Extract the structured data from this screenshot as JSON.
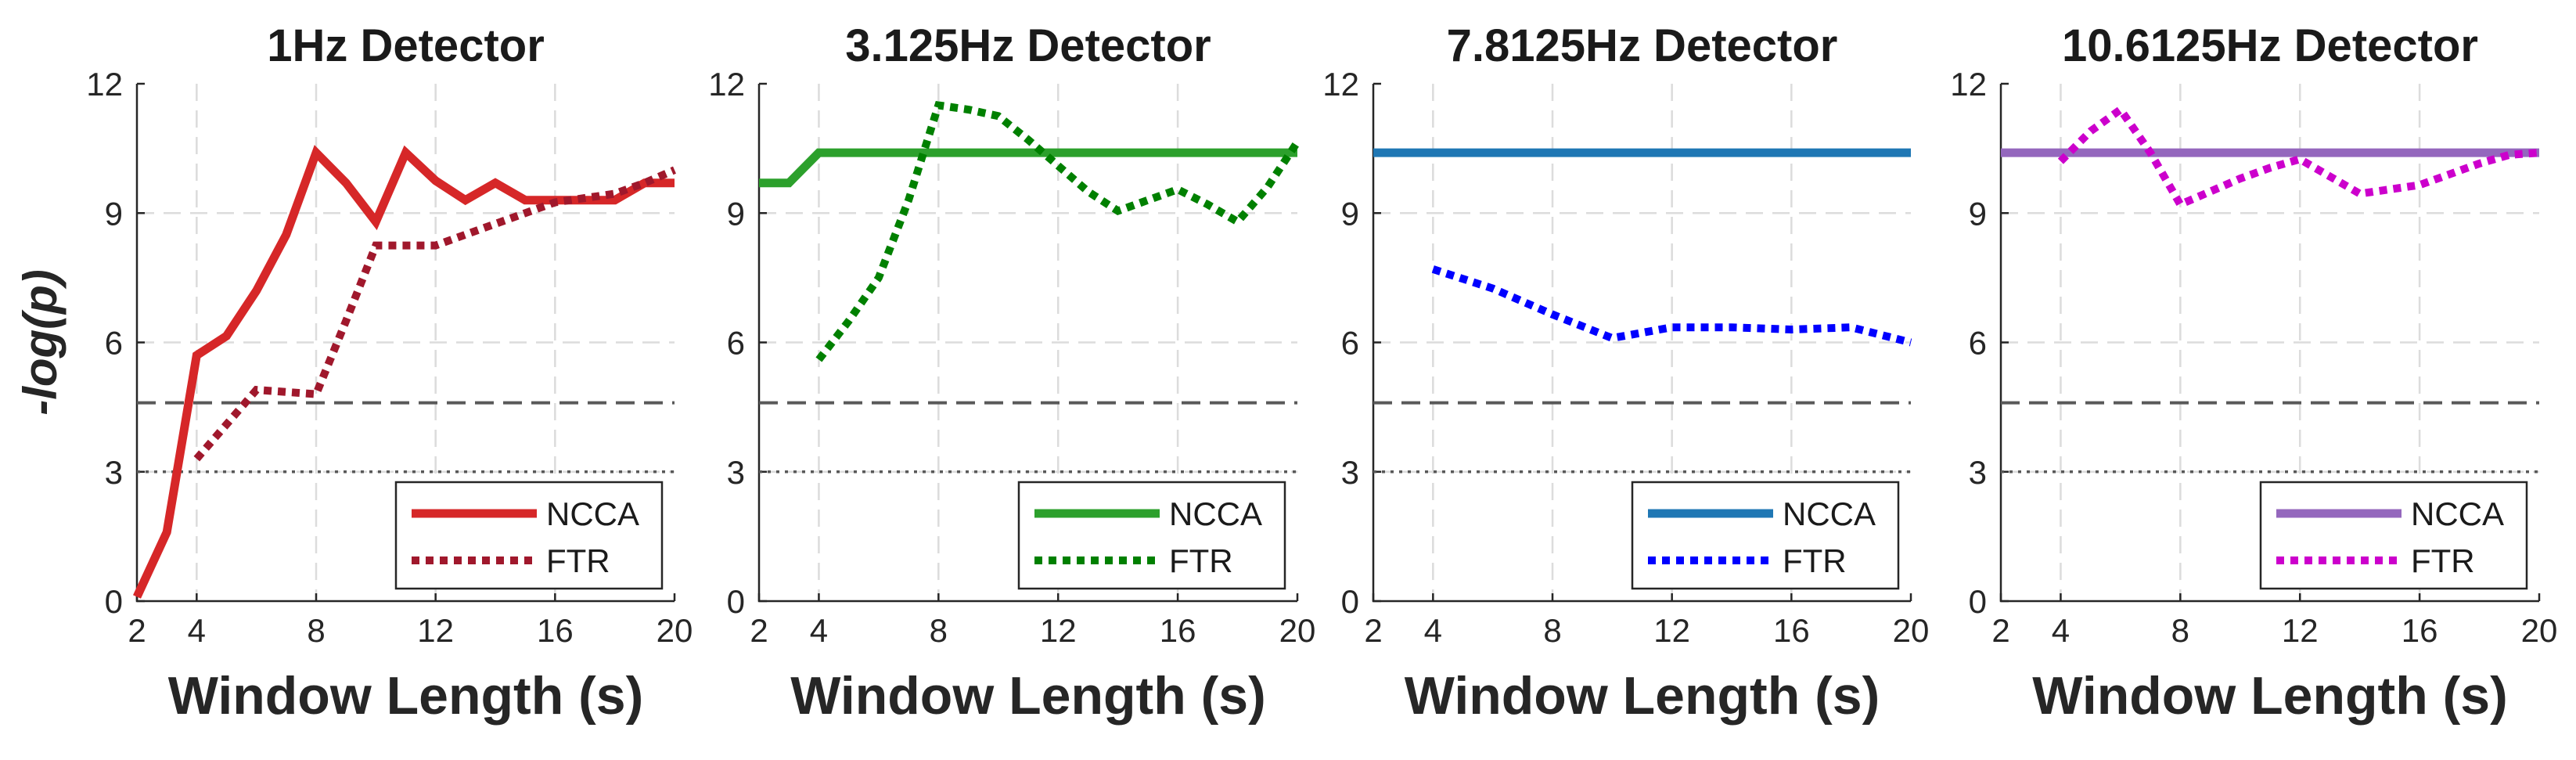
{
  "colors": {
    "ncca_1hz": "#d62728",
    "ftr_1hz": "#a0182c",
    "ncca_3hz": "#2ca02c",
    "ftr_3hz": "#008000",
    "ncca_7hz": "#1f77b4",
    "ftr_7hz": "#0000ff",
    "ncca_10hz": "#9467bd",
    "ftr_10hz": "#cc00cc",
    "threshold_dashed": "#595959",
    "threshold_dotted": "#595959"
  },
  "chart_data": [
    {
      "type": "line",
      "title": "1Hz Detector",
      "xlabel": "Window Length (s)",
      "ylabel": "-log(p)",
      "xlim": [
        2,
        20
      ],
      "ylim": [
        0,
        12
      ],
      "xticks": [
        "2",
        "4",
        "8",
        "12",
        "16",
        "20"
      ],
      "yticks": [
        "0",
        "3",
        "6",
        "9",
        "12"
      ],
      "grid": true,
      "legend": "bottom-right",
      "thresholds": [
        {
          "y": 4.6,
          "style": "dashed"
        },
        {
          "y": 3.0,
          "style": "dotted"
        }
      ],
      "series": [
        {
          "name": "NCCA",
          "style": "solid",
          "color": "#d62728",
          "x": [
            2,
            3,
            4,
            5,
            6,
            7,
            8,
            9,
            10,
            11,
            12,
            13,
            14,
            15,
            16,
            17,
            18,
            19,
            20
          ],
          "y": [
            0.1,
            1.6,
            5.7,
            6.15,
            7.2,
            8.5,
            10.4,
            9.7,
            8.8,
            10.4,
            9.75,
            9.3,
            9.7,
            9.3,
            9.3,
            9.3,
            9.3,
            9.7,
            9.7
          ]
        },
        {
          "name": "FTR",
          "style": "dotted",
          "color": "#a0182c",
          "x": [
            4,
            5,
            6,
            7,
            8,
            9,
            10,
            11,
            12,
            13,
            14,
            15,
            16,
            17,
            18,
            19,
            20
          ],
          "y": [
            3.3,
            4.1,
            4.9,
            4.85,
            4.8,
            6.5,
            8.25,
            8.25,
            8.25,
            8.5,
            8.75,
            9.0,
            9.25,
            9.35,
            9.45,
            9.7,
            10.0
          ]
        }
      ]
    },
    {
      "type": "line",
      "title": "3.125Hz Detector",
      "xlabel": "Window Length (s)",
      "ylabel": "",
      "xlim": [
        2,
        20
      ],
      "ylim": [
        0,
        12
      ],
      "xticks": [
        "2",
        "4",
        "8",
        "12",
        "16",
        "20"
      ],
      "yticks": [
        "0",
        "3",
        "6",
        "9",
        "12"
      ],
      "grid": true,
      "legend": "bottom-right",
      "thresholds": [
        {
          "y": 4.6,
          "style": "dashed"
        },
        {
          "y": 3.0,
          "style": "dotted"
        }
      ],
      "series": [
        {
          "name": "NCCA",
          "style": "solid",
          "color": "#2ca02c",
          "x": [
            2,
            3,
            4,
            20
          ],
          "y": [
            9.7,
            9.7,
            10.4,
            10.4
          ]
        },
        {
          "name": "FTR",
          "style": "dotted",
          "color": "#008000",
          "x": [
            4,
            5,
            6,
            7,
            8,
            9,
            10,
            11,
            12,
            13,
            14,
            15,
            16,
            17,
            18,
            19,
            20
          ],
          "y": [
            5.6,
            6.5,
            7.5,
            9.3,
            11.5,
            11.4,
            11.25,
            10.7,
            10.1,
            9.5,
            9.05,
            9.3,
            9.55,
            9.2,
            8.8,
            9.6,
            10.65
          ]
        }
      ]
    },
    {
      "type": "line",
      "title": "7.8125Hz Detector",
      "xlabel": "Window Length (s)",
      "ylabel": "",
      "xlim": [
        2,
        20
      ],
      "ylim": [
        0,
        12
      ],
      "xticks": [
        "2",
        "4",
        "8",
        "12",
        "16",
        "20"
      ],
      "yticks": [
        "0",
        "3",
        "6",
        "9",
        "12"
      ],
      "grid": true,
      "legend": "bottom-right",
      "thresholds": [
        {
          "y": 4.6,
          "style": "dashed"
        },
        {
          "y": 3.0,
          "style": "dotted"
        }
      ],
      "series": [
        {
          "name": "NCCA",
          "style": "solid",
          "color": "#1f77b4",
          "x": [
            2,
            20
          ],
          "y": [
            10.4,
            10.4
          ]
        },
        {
          "name": "FTR",
          "style": "dotted",
          "color": "#0000ff",
          "x": [
            4,
            6,
            8,
            10,
            12,
            14,
            16,
            18,
            20
          ],
          "y": [
            7.7,
            7.25,
            6.65,
            6.1,
            6.35,
            6.35,
            6.3,
            6.35,
            6.0
          ]
        }
      ]
    },
    {
      "type": "line",
      "title": "10.6125Hz Detector",
      "xlabel": "Window Length (s)",
      "ylabel": "",
      "xlim": [
        2,
        20
      ],
      "ylim": [
        0,
        12
      ],
      "xticks": [
        "2",
        "4",
        "8",
        "12",
        "16",
        "20"
      ],
      "yticks": [
        "0",
        "3",
        "6",
        "9",
        "12"
      ],
      "grid": true,
      "legend": "bottom-right",
      "thresholds": [
        {
          "y": 4.6,
          "style": "dashed"
        },
        {
          "y": 3.0,
          "style": "dotted"
        }
      ],
      "series": [
        {
          "name": "NCCA",
          "style": "solid",
          "color": "#9467bd",
          "x": [
            2,
            20
          ],
          "y": [
            10.4,
            10.4
          ]
        },
        {
          "name": "FTR",
          "style": "dotted",
          "color": "#cc00cc",
          "x": [
            4,
            5,
            6,
            7,
            8,
            9,
            10,
            11,
            12,
            13,
            14,
            15,
            16,
            17,
            18,
            19,
            20
          ],
          "y": [
            10.2,
            10.9,
            11.4,
            10.4,
            9.2,
            9.5,
            9.8,
            10.05,
            10.25,
            9.85,
            9.45,
            9.55,
            9.65,
            9.9,
            10.15,
            10.35,
            10.4
          ]
        }
      ]
    }
  ]
}
